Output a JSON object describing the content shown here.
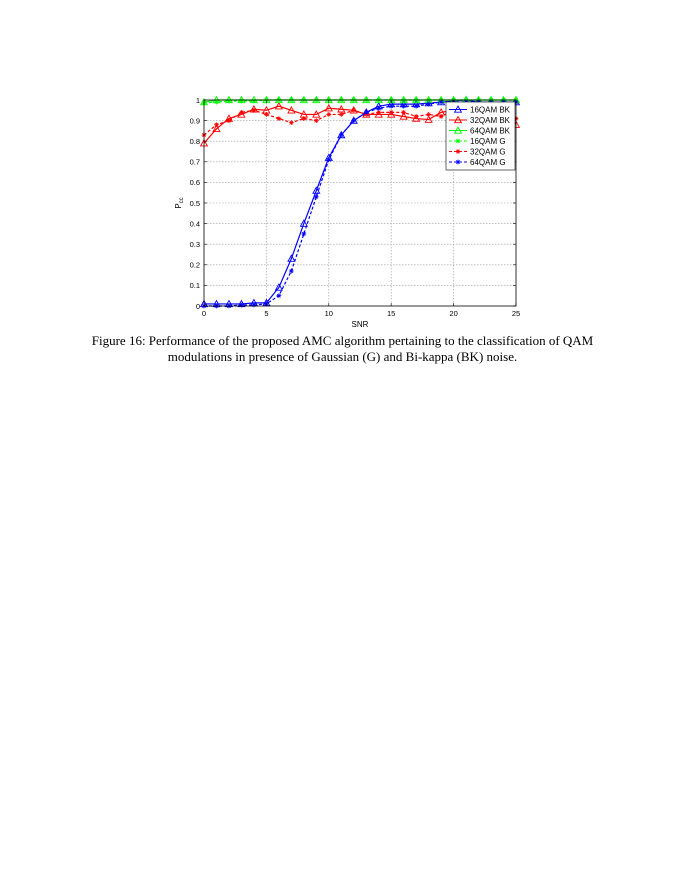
{
  "figure": {
    "caption_line1": "Figure 16: Performance of the proposed AMC algorithm pertaining to the classification of QAM",
    "caption_line2": "modulations in presence of Gaussian (G) and Bi-kappa (BK) noise."
  },
  "chart_data": {
    "type": "line",
    "title": "",
    "xlabel": "SNR",
    "ylabel": "P",
    "ylabel_subscript": "cc",
    "xlim": [
      0,
      25
    ],
    "ylim": [
      0,
      1
    ],
    "xticks": [
      0,
      5,
      10,
      15,
      20,
      25
    ],
    "yticks": [
      0,
      0.1,
      0.2,
      0.3,
      0.4,
      0.5,
      0.6,
      0.7,
      0.8,
      0.9,
      1
    ],
    "grid": true,
    "legend_position": "top-right",
    "x": [
      0,
      1,
      2,
      3,
      4,
      5,
      6,
      7,
      8,
      9,
      10,
      11,
      12,
      13,
      14,
      15,
      16,
      17,
      18,
      19,
      20,
      21,
      22,
      23,
      24,
      25
    ],
    "series": [
      {
        "name": "16QAM BK",
        "color": "#0000ff",
        "line": "solid",
        "marker": "triangle",
        "values": [
          0.01,
          0.01,
          0.01,
          0.01,
          0.015,
          0.015,
          0.09,
          0.23,
          0.4,
          0.56,
          0.72,
          0.83,
          0.9,
          0.94,
          0.97,
          0.98,
          0.98,
          0.98,
          0.985,
          0.99,
          0.995,
          1.0,
          0.99,
          0.99,
          0.99,
          0.99
        ]
      },
      {
        "name": "32QAM BK",
        "color": "#ff0000",
        "line": "solid",
        "marker": "triangle",
        "values": [
          0.79,
          0.86,
          0.91,
          0.93,
          0.955,
          0.95,
          0.97,
          0.95,
          0.93,
          0.93,
          0.96,
          0.955,
          0.95,
          0.93,
          0.93,
          0.93,
          0.92,
          0.91,
          0.905,
          0.94,
          0.95,
          0.96,
          0.97,
          0.97,
          0.97,
          0.88
        ]
      },
      {
        "name": "64QAM BK",
        "color": "#00ff00",
        "line": "solid",
        "marker": "triangle",
        "values": [
          0.99,
          1.0,
          1.0,
          1.0,
          1.0,
          1.0,
          1.0,
          1.0,
          1.0,
          1.0,
          1.0,
          1.0,
          1.0,
          1.0,
          1.0,
          1.0,
          1.0,
          1.0,
          1.0,
          1.0,
          1.0,
          1.0,
          1.0,
          1.0,
          1.0,
          1.0
        ]
      },
      {
        "name": "16QAM G",
        "color": "#00ff00",
        "line": "dashed",
        "marker": "star",
        "values": [
          0.985,
          0.99,
          0.995,
          0.995,
          0.995,
          1.0,
          1.0,
          1.0,
          1.0,
          1.0,
          1.0,
          1.0,
          1.0,
          1.0,
          1.0,
          1.0,
          1.0,
          1.0,
          1.0,
          1.0,
          1.0,
          1.0,
          1.0,
          1.0,
          1.0,
          1.0
        ]
      },
      {
        "name": "32QAM G",
        "color": "#ff0000",
        "line": "dashed",
        "marker": "star",
        "values": [
          0.83,
          0.88,
          0.9,
          0.94,
          0.95,
          0.93,
          0.91,
          0.89,
          0.91,
          0.9,
          0.93,
          0.93,
          0.95,
          0.93,
          0.94,
          0.94,
          0.94,
          0.92,
          0.93,
          0.92,
          0.95,
          0.96,
          0.96,
          0.95,
          0.95,
          0.91
        ]
      },
      {
        "name": "64QAM G",
        "color": "#0000ff",
        "line": "dashed",
        "marker": "star",
        "values": [
          0.0,
          0.0,
          0.0,
          0.005,
          0.005,
          0.01,
          0.05,
          0.17,
          0.35,
          0.53,
          0.71,
          0.83,
          0.9,
          0.94,
          0.96,
          0.97,
          0.97,
          0.97,
          0.98,
          0.99,
          0.99,
          0.99,
          0.99,
          0.99,
          0.99,
          0.99
        ]
      }
    ]
  }
}
